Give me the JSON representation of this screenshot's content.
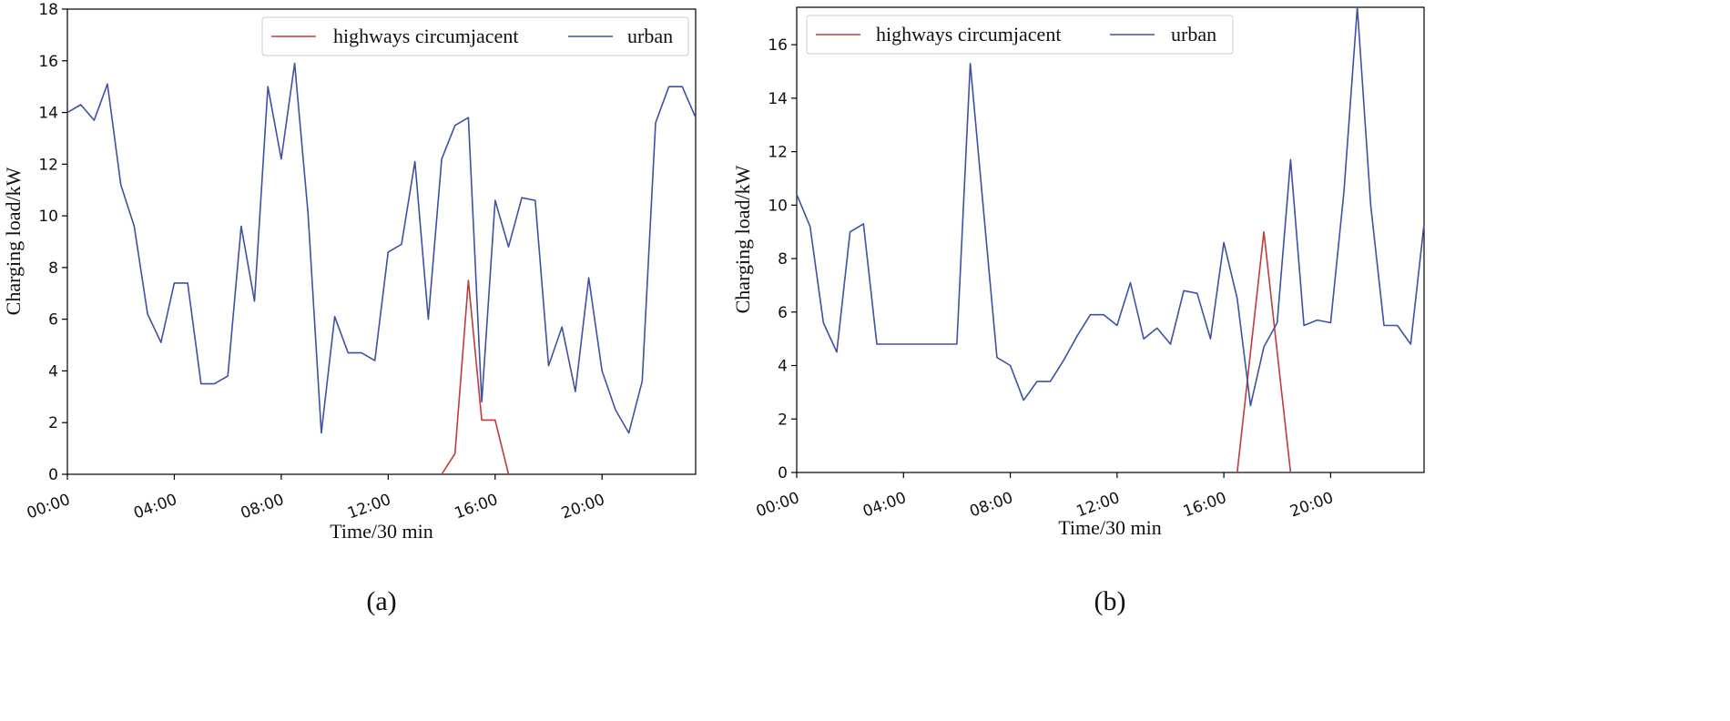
{
  "chart_data": [
    {
      "panel_label": "(a)",
      "type": "line",
      "title": "",
      "xlabel": "Time/30 min",
      "ylabel": "Charging load/kW",
      "x_tick_labels": [
        "00:00",
        "04:00",
        "08:00",
        "12:00",
        "16:00",
        "20:00"
      ],
      "x_tick_hours": [
        0,
        4,
        8,
        12,
        16,
        20
      ],
      "xlim": [
        0,
        23.5
      ],
      "ylim": [
        0,
        18
      ],
      "yticks": [
        0,
        2,
        4,
        6,
        8,
        10,
        12,
        14,
        16,
        18
      ],
      "legend": "top-right",
      "series": [
        {
          "name": "highways circumjacent",
          "color": "#c0393b",
          "x": [
            14.0,
            14.5,
            15.0,
            15.5,
            16.0,
            16.5
          ],
          "values": [
            0,
            0.8,
            7.5,
            2.1,
            2.1,
            0
          ]
        },
        {
          "name": "urban",
          "color": "#3f51a3",
          "x": [
            0,
            0.5,
            1.0,
            1.5,
            2.0,
            2.5,
            3.0,
            3.5,
            4.0,
            4.5,
            5.0,
            5.5,
            6.0,
            6.5,
            7.0,
            7.5,
            8.0,
            8.5,
            9.0,
            9.5,
            10.0,
            10.5,
            11.0,
            11.5,
            12.0,
            12.5,
            13.0,
            13.5,
            14.0,
            14.5,
            15.0,
            15.5,
            16.0,
            16.5,
            17.0,
            17.5,
            18.0,
            18.5,
            19.0,
            19.5,
            20.0,
            20.5,
            21.0,
            21.5,
            22.0,
            22.5,
            23.0,
            23.5
          ],
          "values": [
            14.0,
            14.3,
            13.7,
            15.1,
            11.2,
            9.6,
            6.2,
            5.1,
            7.4,
            7.4,
            3.5,
            3.5,
            3.8,
            9.6,
            6.7,
            15.0,
            12.2,
            15.9,
            10.1,
            1.6,
            6.1,
            4.7,
            4.7,
            4.4,
            8.6,
            8.9,
            12.1,
            6.0,
            12.2,
            13.5,
            13.8,
            2.8,
            10.6,
            8.8,
            10.7,
            10.6,
            4.2,
            5.7,
            3.2,
            7.6,
            4.0,
            2.5,
            1.6,
            3.6,
            13.6,
            15.0,
            15.0,
            13.8
          ]
        }
      ]
    },
    {
      "panel_label": "(b)",
      "type": "line",
      "title": "",
      "xlabel": "Time/30 min",
      "ylabel": "Charging load/kW",
      "x_tick_labels": [
        "00:00",
        "04:00",
        "08:00",
        "12:00",
        "16:00",
        "20:00"
      ],
      "x_tick_hours": [
        0,
        4,
        8,
        12,
        16,
        20
      ],
      "xlim": [
        0,
        23.5
      ],
      "ylim": [
        0,
        17.4
      ],
      "yticks": [
        0,
        2,
        4,
        6,
        8,
        10,
        12,
        14,
        16
      ],
      "legend": "top-right",
      "series": [
        {
          "name": "highways circumjacent",
          "color": "#c0393b",
          "x": [
            16.5,
            17.0,
            17.5,
            18.0,
            18.5
          ],
          "values": [
            0,
            4.5,
            9.0,
            4.5,
            0
          ]
        },
        {
          "name": "urban",
          "color": "#3f51a3",
          "x": [
            0,
            0.5,
            1.0,
            1.5,
            2.0,
            2.5,
            3.0,
            3.5,
            4.0,
            4.5,
            5.0,
            5.5,
            6.0,
            6.5,
            7.0,
            7.5,
            8.0,
            8.5,
            9.0,
            9.5,
            10.0,
            10.5,
            11.0,
            11.5,
            12.0,
            12.5,
            13.0,
            13.5,
            14.0,
            14.5,
            15.0,
            15.5,
            16.0,
            16.5,
            17.0,
            17.5,
            18.0,
            18.5,
            19.0,
            19.5,
            20.0,
            20.5,
            21.0,
            21.5,
            22.0,
            22.5,
            23.0,
            23.5
          ],
          "values": [
            10.4,
            9.2,
            5.6,
            4.5,
            9.0,
            9.3,
            4.8,
            4.8,
            4.8,
            4.8,
            4.8,
            4.8,
            4.8,
            15.3,
            9.8,
            4.3,
            4.0,
            2.7,
            3.4,
            3.4,
            4.2,
            5.1,
            5.9,
            5.9,
            5.5,
            7.1,
            5.0,
            5.4,
            4.8,
            6.8,
            6.7,
            5.0,
            8.6,
            6.5,
            2.5,
            4.7,
            5.6,
            11.7,
            5.5,
            5.7,
            5.6,
            10.5,
            17.4,
            10.0,
            5.5,
            5.5,
            4.8,
            9.3
          ]
        }
      ]
    }
  ]
}
